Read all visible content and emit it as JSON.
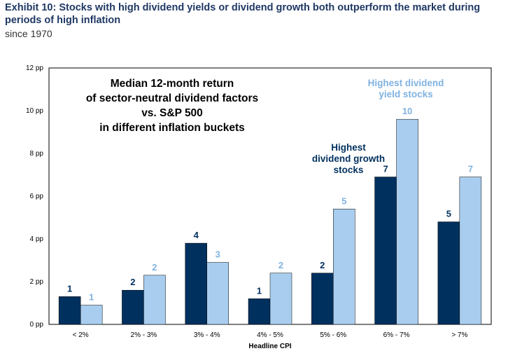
{
  "header": {
    "title": "Exhibit 10: Stocks with high dividend yields or dividend growth both outperform the market during periods of high inflation",
    "subtitle": "since 1970"
  },
  "colors": {
    "growth": "#00305e",
    "yield": "#a8cdee",
    "yield_text": "#7fb2e0",
    "title": "#1f3864"
  },
  "chart_data": {
    "type": "bar",
    "title": "Median 12-month return of sector-neutral dividend factors vs. S&P 500 in different inflation buckets",
    "title_lines": [
      "Median 12-month return",
      "of sector-neutral dividend factors",
      "vs. S&P 500",
      "in different inflation buckets"
    ],
    "xlabel": "Headline CPI",
    "ylabel": "",
    "ylim": [
      0,
      12
    ],
    "yticks": [
      0,
      2,
      4,
      6,
      8,
      10,
      12
    ],
    "ytick_labels": [
      "0 pp",
      "2 pp",
      "4 pp",
      "6 pp",
      "8 pp",
      "10 pp",
      "12 pp"
    ],
    "categories": [
      "< 2%",
      "2% - 3%",
      "3% - 4%",
      "4% - 5%",
      "5% - 6%",
      "6% - 7%",
      "> 7%"
    ],
    "series": [
      {
        "name": "Highest dividend growth stocks",
        "label_lines": [
          "Highest",
          "dividend growth",
          "stocks"
        ],
        "values": [
          1.3,
          1.6,
          3.8,
          1.2,
          2.4,
          6.9,
          4.8
        ],
        "data_labels": [
          "1",
          "2",
          "4",
          "1",
          "2",
          "7",
          "5"
        ]
      },
      {
        "name": "Highest dividend yield stocks",
        "label_lines": [
          "Highest dividend",
          "yield stocks"
        ],
        "values": [
          0.9,
          2.3,
          2.9,
          2.4,
          5.4,
          9.6,
          6.9
        ],
        "data_labels": [
          "1",
          "2",
          "3",
          "2",
          "5",
          "10",
          "7"
        ]
      }
    ],
    "grid": false,
    "legend": "inline annotations"
  }
}
